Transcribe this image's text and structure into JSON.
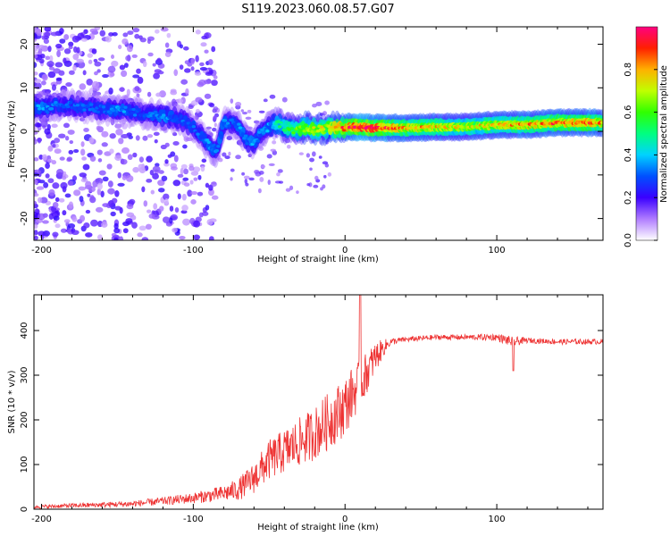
{
  "title": "S119.2023.060.08.57.G07",
  "chart_data": [
    {
      "type": "heatmap",
      "name": "spectrogram",
      "xlabel": "Height of straight line (km)",
      "ylabel": "Frequency (Hz)",
      "xlim": [
        -205,
        170
      ],
      "ylim": [
        -25,
        24
      ],
      "xticks": [
        -200,
        -100,
        0,
        100
      ],
      "yticks": [
        -20,
        -10,
        0,
        10,
        20
      ],
      "ridge": {
        "x": [
          -200,
          -190,
          -180,
          -170,
          -160,
          -150,
          -140,
          -130,
          -120,
          -110,
          -100,
          -95,
          -90,
          -85,
          -80,
          -75,
          -70,
          -65,
          -60,
          -55,
          -50,
          -45,
          -40,
          -35,
          -30,
          -25,
          -20,
          -15,
          -10,
          -5,
          0,
          10,
          20,
          40,
          60,
          80,
          100,
          120,
          140,
          160,
          170
        ],
        "y": [
          5.5,
          6,
          6,
          5.5,
          5,
          5,
          4.5,
          4,
          3.5,
          3,
          1,
          -1,
          -3,
          -5,
          2,
          2,
          1,
          -2,
          -3,
          0,
          1,
          2,
          1,
          0.5,
          0.5,
          1,
          0.5,
          0.5,
          0.8,
          1,
          1,
          1,
          0.8,
          0.8,
          1,
          1,
          1.5,
          1.5,
          2,
          2,
          2
        ],
        "amplitude": [
          0.35,
          0.3,
          0.3,
          0.3,
          0.3,
          0.35,
          0.3,
          0.3,
          0.35,
          0.3,
          0.3,
          0.3,
          0.35,
          0.35,
          0.35,
          0.3,
          0.35,
          0.35,
          0.35,
          0.35,
          0.35,
          0.45,
          0.5,
          0.55,
          0.6,
          0.7,
          0.7,
          0.7,
          0.75,
          0.8,
          0.85,
          1.0,
          0.95,
          0.8,
          0.75,
          0.7,
          0.75,
          0.8,
          0.85,
          0.85,
          0.8
        ]
      },
      "colorbar": {
        "label": "Normalized spectral amplitude",
        "ticks": [
          "0.0",
          "0.2",
          "0.4",
          "0.6",
          "0.8"
        ],
        "range": [
          0,
          1
        ]
      }
    },
    {
      "type": "line",
      "name": "snr",
      "xlabel": "Height of straight line (km)",
      "ylabel": "SNR (10 * v/v)",
      "xlim": [
        -205,
        170
      ],
      "ylim": [
        0,
        480
      ],
      "xticks": [
        -200,
        -100,
        0,
        100
      ],
      "yticks": [
        0,
        100,
        200,
        300,
        400
      ],
      "color": "#ee3333",
      "x": [
        -205,
        -180,
        -160,
        -140,
        -120,
        -100,
        -90,
        -80,
        -70,
        -60,
        -50,
        -40,
        -30,
        -20,
        -10,
        0,
        5,
        10,
        15,
        20,
        25,
        30,
        40,
        60,
        80,
        100,
        110,
        120,
        140,
        160,
        170
      ],
      "y": [
        5,
        8,
        10,
        12,
        18,
        25,
        30,
        35,
        45,
        70,
        110,
        130,
        150,
        170,
        200,
        230,
        260,
        280,
        310,
        340,
        360,
        375,
        380,
        385,
        385,
        385,
        375,
        378,
        375,
        375,
        375
      ],
      "noise": [
        4,
        5,
        6,
        7,
        9,
        12,
        15,
        18,
        25,
        35,
        45,
        50,
        55,
        60,
        65,
        65,
        60,
        55,
        45,
        35,
        20,
        8,
        6,
        6,
        6,
        8,
        12,
        6,
        6,
        6,
        6
      ]
    }
  ]
}
